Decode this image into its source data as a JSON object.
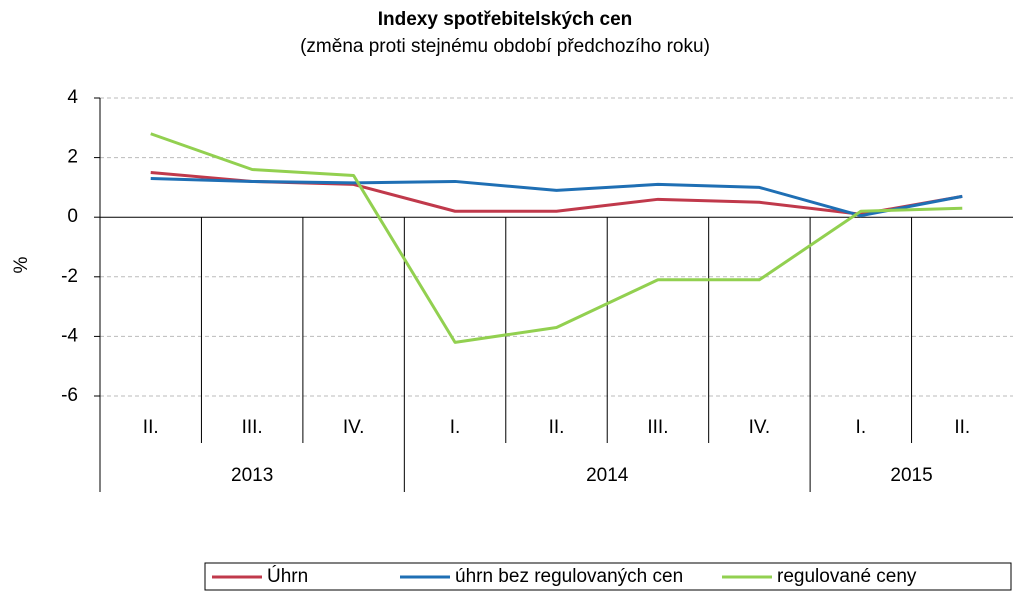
{
  "chart_data": {
    "type": "line",
    "title": "Indexy spotřebitelských cen",
    "subtitle": "(změna proti stejnému období předchozího roku)",
    "y_label": "%",
    "categories": [
      "II.",
      "III.",
      "IV.",
      "I.",
      "II.",
      "III.",
      "IV.",
      "I.",
      "II."
    ],
    "years": [
      "2013",
      null,
      null,
      "2014",
      null,
      null,
      null,
      "2015",
      null
    ],
    "series": [
      {
        "name": "Úhrn",
        "color": "#c0394b",
        "values": [
          1.5,
          1.2,
          1.1,
          0.2,
          0.2,
          0.6,
          0.5,
          0.1,
          0.7
        ]
      },
      {
        "name": "úhrn bez regulovaných cen",
        "color": "#1f6fb4",
        "values": [
          1.3,
          1.2,
          1.15,
          1.2,
          0.9,
          1.1,
          1.0,
          0.05,
          0.7
        ]
      },
      {
        "name": "regulované ceny",
        "color": "#92d050",
        "values": [
          2.8,
          1.6,
          1.4,
          -4.2,
          -3.7,
          -2.1,
          -2.1,
          0.2,
          0.3
        ]
      }
    ],
    "ylim": [
      -6,
      4
    ],
    "yticks": [
      -6,
      -4,
      -2,
      0,
      2,
      4
    ],
    "grid": true
  }
}
